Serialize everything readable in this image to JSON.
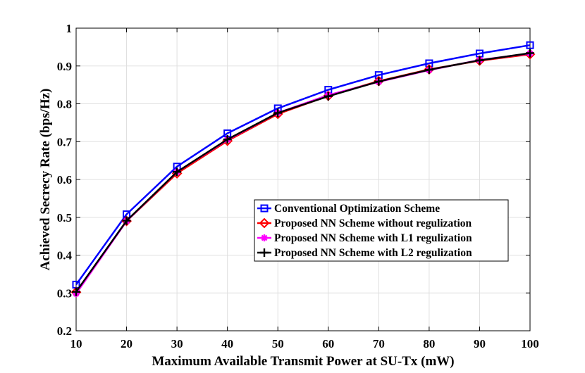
{
  "chart_data": {
    "type": "line",
    "title": "",
    "xlabel": "Maximum Available Transmit Power at SU-Tx (mW)",
    "ylabel": "Achieved Secrecy Rate (bps/Hz)",
    "x": [
      10,
      20,
      30,
      40,
      50,
      60,
      70,
      80,
      90,
      100
    ],
    "xlim": [
      10,
      100
    ],
    "ylim": [
      0.2,
      1
    ],
    "xticks": [
      "10",
      "20",
      "30",
      "40",
      "50",
      "60",
      "70",
      "80",
      "90",
      "100"
    ],
    "yticks": [
      "0.2",
      "0.3",
      "0.4",
      "0.5",
      "0.6",
      "0.7",
      "0.8",
      "0.9",
      "1"
    ],
    "grid": true,
    "legend_position": "center-right",
    "series": [
      {
        "name": "Conventional Optimization Scheme",
        "color": "#0000ff",
        "marker": "square",
        "values": [
          0.322,
          0.508,
          0.634,
          0.722,
          0.788,
          0.837,
          0.876,
          0.907,
          0.933,
          0.955
        ]
      },
      {
        "name": "Proposed NN Scheme without regulization",
        "color": "#ff0000",
        "marker": "diamond",
        "values": [
          0.302,
          0.49,
          0.616,
          0.702,
          0.773,
          0.821,
          0.86,
          0.891,
          0.914,
          0.931
        ]
      },
      {
        "name": "Proposed NN Scheme with L1 regulization",
        "color": "#ff00ff",
        "marker": "star",
        "values": [
          0.298,
          0.49,
          0.62,
          0.705,
          0.776,
          0.823,
          0.858,
          0.889,
          0.916,
          0.933
        ]
      },
      {
        "name": "Proposed NN Scheme with L2 regulization",
        "color": "#000000",
        "marker": "plus",
        "values": [
          0.303,
          0.491,
          0.62,
          0.706,
          0.776,
          0.82,
          0.859,
          0.89,
          0.915,
          0.934
        ]
      }
    ]
  }
}
